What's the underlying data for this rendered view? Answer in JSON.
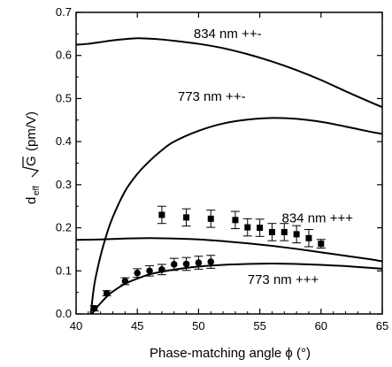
{
  "chart_data": {
    "type": "line",
    "xlabel": "Phase-matching angle ϕ (°)",
    "ylabel_parts": {
      "d": "d",
      "sub": "eff",
      "sqrt_arg": "G",
      "unit": "(pm/V)"
    },
    "xlim": [
      40,
      65
    ],
    "ylim": [
      0.0,
      0.7
    ],
    "xticks": [
      40,
      45,
      50,
      55,
      60,
      65
    ],
    "yticks": [
      0.0,
      0.1,
      0.2,
      0.3,
      0.4,
      0.5,
      0.6,
      0.7
    ],
    "grid": false,
    "series": [
      {
        "name": "834 nm ++-",
        "style": "curve",
        "x": [
          40.0,
          41.0,
          42.0,
          43.0,
          44.0,
          45.0,
          46.0,
          47.0,
          48.0,
          50.0,
          52.0,
          54.0,
          56.0,
          58.0,
          60.0,
          62.0,
          64.0,
          65.0
        ],
        "y": [
          0.625,
          0.627,
          0.631,
          0.635,
          0.638,
          0.64,
          0.639,
          0.637,
          0.634,
          0.627,
          0.617,
          0.603,
          0.586,
          0.566,
          0.543,
          0.517,
          0.492,
          0.48
        ]
      },
      {
        "name": "773 nm ++-",
        "style": "curve",
        "x": [
          41.2,
          41.5,
          42.0,
          42.5,
          43.0,
          44.0,
          45.0,
          46.0,
          47.0,
          48.0,
          50.0,
          52.0,
          54.0,
          56.0,
          58.0,
          60.0,
          62.0,
          64.0,
          65.0
        ],
        "y": [
          0.0,
          0.07,
          0.135,
          0.185,
          0.225,
          0.285,
          0.325,
          0.355,
          0.38,
          0.4,
          0.425,
          0.442,
          0.451,
          0.455,
          0.453,
          0.446,
          0.435,
          0.423,
          0.418
        ]
      },
      {
        "name": "834 nm +++",
        "style": "curve",
        "x": [
          40.0,
          42.0,
          44.0,
          46.0,
          48.0,
          50.0,
          52.0,
          54.0,
          56.0,
          58.0,
          60.0,
          62.0,
          64.0,
          65.0
        ],
        "y": [
          0.172,
          0.173,
          0.175,
          0.176,
          0.175,
          0.173,
          0.169,
          0.164,
          0.158,
          0.151,
          0.143,
          0.135,
          0.127,
          0.122
        ]
      },
      {
        "name": "773 nm +++",
        "style": "curve",
        "x": [
          41.3,
          41.6,
          42.0,
          42.5,
          43.0,
          44.0,
          45.0,
          46.0,
          47.0,
          48.0,
          50.0,
          52.0,
          54.0,
          56.0,
          58.0,
          60.0,
          62.0,
          64.0,
          65.0
        ],
        "y": [
          0.0,
          0.012,
          0.025,
          0.04,
          0.052,
          0.07,
          0.082,
          0.092,
          0.098,
          0.103,
          0.11,
          0.114,
          0.116,
          0.117,
          0.116,
          0.114,
          0.111,
          0.107,
          0.105
        ]
      },
      {
        "name": "834 nm +++ (measured)",
        "style": "squares",
        "x": [
          47.0,
          49.0,
          51.0,
          53.0,
          54.0,
          55.0,
          56.0,
          57.0,
          58.0,
          59.0,
          60.0
        ],
        "y": [
          0.23,
          0.224,
          0.221,
          0.218,
          0.201,
          0.2,
          0.19,
          0.19,
          0.185,
          0.176,
          0.163
        ],
        "err": [
          0.02,
          0.02,
          0.02,
          0.02,
          0.02,
          0.02,
          0.02,
          0.02,
          0.02,
          0.02,
          0.01
        ]
      },
      {
        "name": "773 nm +++ (measured)",
        "style": "circles",
        "x": [
          41.5,
          42.5,
          44.0,
          45.0,
          46.0,
          47.0,
          48.0,
          49.0,
          50.0,
          51.0
        ],
        "y": [
          0.013,
          0.048,
          0.076,
          0.095,
          0.1,
          0.103,
          0.115,
          0.116,
          0.119,
          0.121
        ],
        "err": [
          0.006,
          0.006,
          0.008,
          0.01,
          0.012,
          0.012,
          0.014,
          0.015,
          0.015,
          0.015
        ]
      }
    ],
    "annotations": [
      {
        "text": "834 nm ++-",
        "x": 49.6,
        "y": 0.64
      },
      {
        "text": "773 nm ++-",
        "x": 48.3,
        "y": 0.495
      },
      {
        "text": "834 nm +++",
        "x": 56.8,
        "y": 0.212
      },
      {
        "text": "773 nm +++",
        "x": 54.0,
        "y": 0.07
      }
    ]
  }
}
